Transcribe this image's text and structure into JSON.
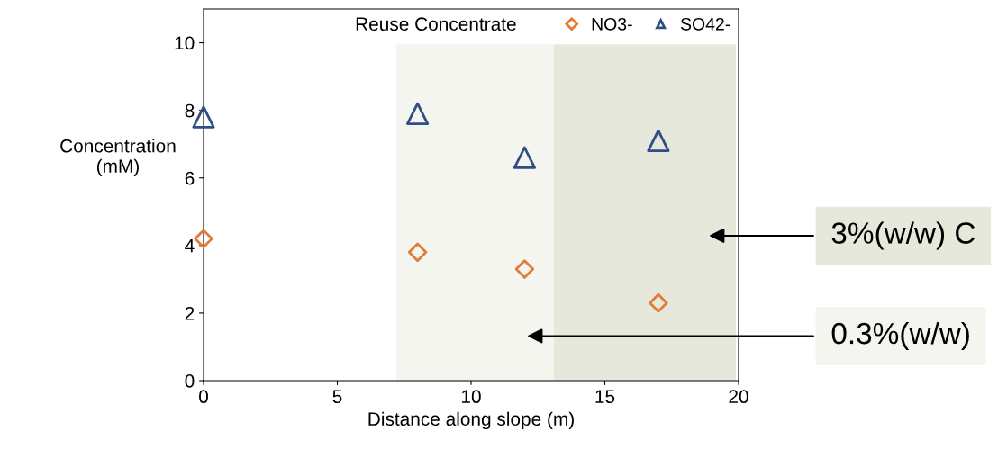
{
  "chart_data": {
    "type": "scatter",
    "xlabel": "Distance along slope (m)",
    "ylabel": "Concentration\n(mM)",
    "legend_title": "Reuse Concentrate",
    "xlim": [
      0,
      20
    ],
    "ylim": [
      0,
      11
    ],
    "xticks": [
      0,
      5,
      10,
      15,
      20
    ],
    "yticks": [
      0,
      2,
      4,
      6,
      8,
      10
    ],
    "grid": false,
    "legend": "top right",
    "x": [
      0,
      8,
      12,
      17
    ],
    "series": [
      {
        "name": "NO3-",
        "color": "#e07b39",
        "marker": "diamond",
        "values": [
          4.2,
          3.8,
          3.3,
          2.3
        ]
      },
      {
        "name": "SO42-",
        "color": "#2f4e85",
        "marker": "triangle",
        "values": [
          7.8,
          7.9,
          6.6,
          7.1
        ]
      }
    ],
    "bands": [
      {
        "axis": "x",
        "from": 7.2,
        "to": 13.1,
        "color": "#f3f5ee"
      },
      {
        "axis": "x",
        "from": 13.1,
        "to": 19.9,
        "color": "#e7e8dc"
      }
    ],
    "annotations": [
      "3%(w/w) C",
      "0.3%(w/w)"
    ]
  }
}
